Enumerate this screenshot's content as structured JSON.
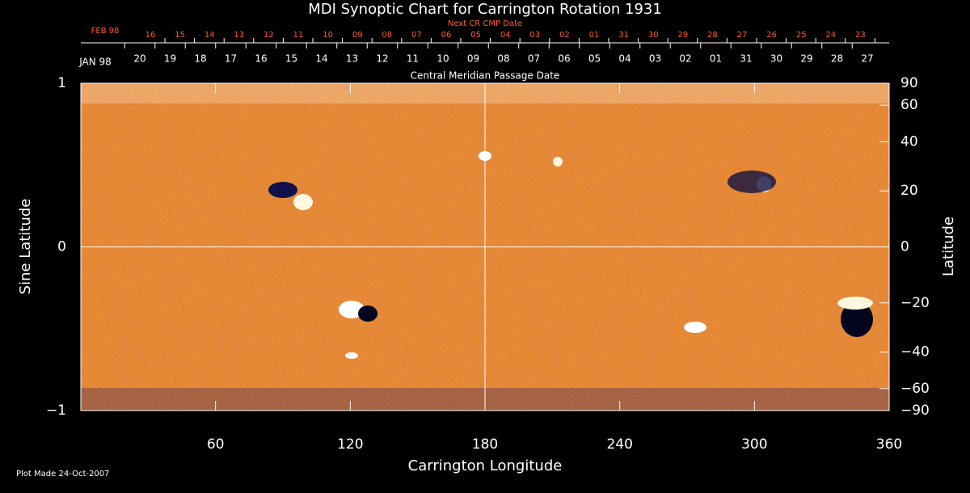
{
  "chart_data": {
    "type": "synoptic",
    "title": "MDI Synoptic Chart for Carrington Rotation 1931",
    "x_label": "Carrington Longitude",
    "y_label": "Sine Latitude",
    "y2_label": "Latitude",
    "xlim": [
      0,
      360
    ],
    "xticks": [
      60,
      120,
      180,
      240,
      300,
      360
    ],
    "ylim": [
      -1,
      1
    ],
    "yticks": [
      {
        "value": -1,
        "label": "−1"
      },
      0,
      1
    ],
    "y2lim": [
      -90,
      90
    ],
    "y2ticks": [
      90,
      60,
      40,
      20,
      0,
      {
        "value": -20,
        "label": "−20"
      },
      {
        "value": -40,
        "label": "−40"
      },
      {
        "value": -60,
        "label": "−60"
      },
      {
        "value": -90,
        "label": "−90"
      }
    ],
    "next_cr_dates": {
      "label": "Next CR CMP Date",
      "month": "FEB 98",
      "days": [
        "16",
        "15",
        "14",
        "13",
        "12",
        "11",
        "10",
        "09",
        "08",
        "07",
        "06",
        "05",
        "04",
        "03",
        "02",
        "01",
        "31",
        "30",
        "29",
        "28",
        "27",
        "26",
        "25",
        "24",
        "23"
      ]
    },
    "cmp_dates": {
      "label": "Central Meridian Passage Date",
      "month": "JAN 98",
      "days": [
        "20",
        "19",
        "18",
        "17",
        "16",
        "15",
        "14",
        "13",
        "12",
        "11",
        "10",
        "09",
        "08",
        "07",
        "06",
        "05",
        "04",
        "03",
        "02",
        "01",
        "31",
        "30",
        "29",
        "28",
        "27"
      ]
    },
    "footer": "Plot Made 24-Oct-2007"
  }
}
